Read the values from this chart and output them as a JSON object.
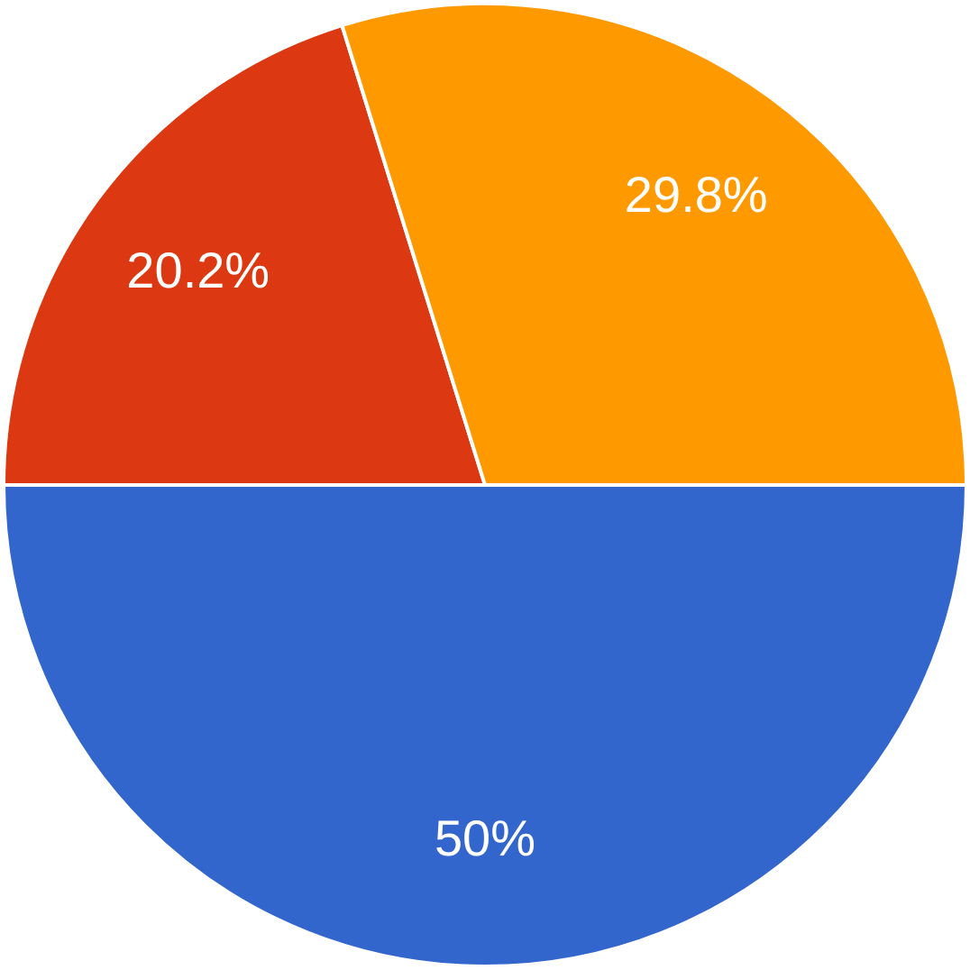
{
  "chart_data": {
    "type": "pie",
    "categories": [
      null,
      null,
      null
    ],
    "values": [
      50,
      20.2,
      29.8
    ],
    "colors": [
      "#3366cc",
      "#dc3912",
      "#ff9900"
    ],
    "value_labels": [
      "50%",
      "20.2%",
      "29.8%"
    ],
    "legend": false
  }
}
